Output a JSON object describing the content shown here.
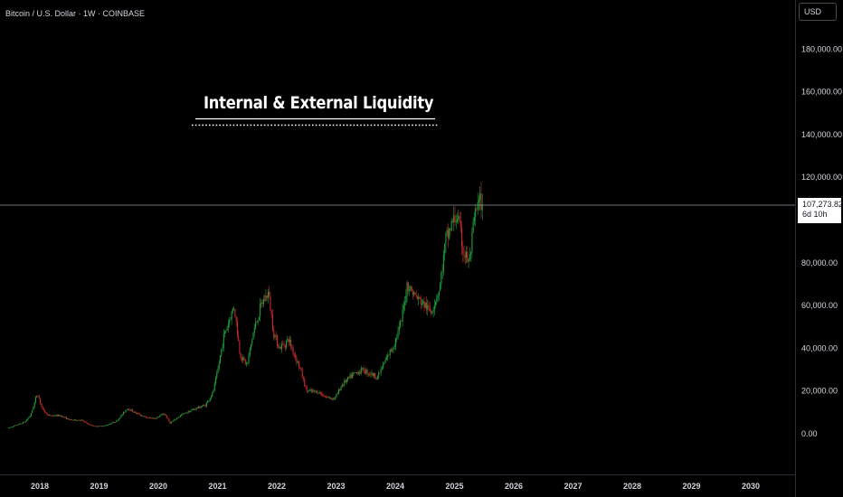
{
  "header": {
    "symbol": "Bitcoin / U.S. Dollar · 1W · COINBASE",
    "currency": "USD"
  },
  "annotation": {
    "title": "Internal & External Liquidity"
  },
  "last_price": {
    "price": "107,273.82",
    "countdown": "6d 10h",
    "value": 107273.82
  },
  "colors": {
    "up": "#1ea03c",
    "down": "#c62a2a",
    "background": "#000000",
    "text": "#d1d4dc",
    "price_line": "#9598a1"
  },
  "chart_data": {
    "type": "candlestick",
    "title": "",
    "xlabel": "",
    "ylabel": "",
    "interval": "1W",
    "ylim": [
      -20000,
      200000
    ],
    "xlim": [
      "2017-07",
      "2030-07"
    ],
    "y_ticks": [
      0,
      20000,
      40000,
      60000,
      80000,
      120000,
      140000,
      160000,
      180000
    ],
    "y_tick_labels": [
      "0.00",
      "20,000.00",
      "40,000.00",
      "60,000.00",
      "80,000.00",
      "120,000.00",
      "140,000.00",
      "160,000.00",
      "180,000.00"
    ],
    "x_tick_labels": [
      "2018",
      "2019",
      "2020",
      "2021",
      "2022",
      "2023",
      "2024",
      "2025",
      "2026",
      "2027",
      "2028",
      "2029",
      "2030"
    ],
    "x_ticks": [
      2018,
      2019,
      2020,
      2021,
      2022,
      2023,
      2024,
      2025,
      2026,
      2027,
      2028,
      2029,
      2030
    ],
    "series": [
      {
        "kind": "approx_close_path",
        "points": [
          [
            2017.45,
            2500
          ],
          [
            2017.6,
            4000
          ],
          [
            2017.75,
            5500
          ],
          [
            2017.85,
            9000
          ],
          [
            2017.96,
            19000
          ],
          [
            2018.05,
            11000
          ],
          [
            2018.15,
            8500
          ],
          [
            2018.35,
            8500
          ],
          [
            2018.5,
            6500
          ],
          [
            2018.7,
            6400
          ],
          [
            2018.85,
            4000
          ],
          [
            2018.95,
            3500
          ],
          [
            2019.1,
            3800
          ],
          [
            2019.3,
            6000
          ],
          [
            2019.48,
            12000
          ],
          [
            2019.6,
            10000
          ],
          [
            2019.8,
            7500
          ],
          [
            2019.95,
            7200
          ],
          [
            2020.1,
            9500
          ],
          [
            2020.2,
            5000
          ],
          [
            2020.4,
            9000
          ],
          [
            2020.6,
            11500
          ],
          [
            2020.8,
            13500
          ],
          [
            2020.92,
            19000
          ],
          [
            2021.0,
            29000
          ],
          [
            2021.1,
            45000
          ],
          [
            2021.28,
            60000
          ],
          [
            2021.38,
            37000
          ],
          [
            2021.5,
            32000
          ],
          [
            2021.6,
            47000
          ],
          [
            2021.75,
            61000
          ],
          [
            2021.86,
            66000
          ],
          [
            2021.95,
            47000
          ],
          [
            2022.05,
            40000
          ],
          [
            2022.2,
            44000
          ],
          [
            2022.4,
            30000
          ],
          [
            2022.5,
            20000
          ],
          [
            2022.7,
            19500
          ],
          [
            2022.85,
            17000
          ],
          [
            2022.98,
            16500
          ],
          [
            2023.1,
            23000
          ],
          [
            2023.3,
            28000
          ],
          [
            2023.45,
            30000
          ],
          [
            2023.7,
            26500
          ],
          [
            2023.85,
            35000
          ],
          [
            2023.98,
            42000
          ],
          [
            2024.1,
            52000
          ],
          [
            2024.2,
            70000
          ],
          [
            2024.35,
            64000
          ],
          [
            2024.5,
            60000
          ],
          [
            2024.6,
            57000
          ],
          [
            2024.75,
            68000
          ],
          [
            2024.85,
            90000
          ],
          [
            2024.95,
            98000
          ],
          [
            2025.05,
            102000
          ],
          [
            2025.15,
            85000
          ],
          [
            2025.25,
            80000
          ],
          [
            2025.35,
            103000
          ],
          [
            2025.42,
            108000
          ],
          [
            2025.48,
            107273.82
          ]
        ]
      }
    ]
  }
}
